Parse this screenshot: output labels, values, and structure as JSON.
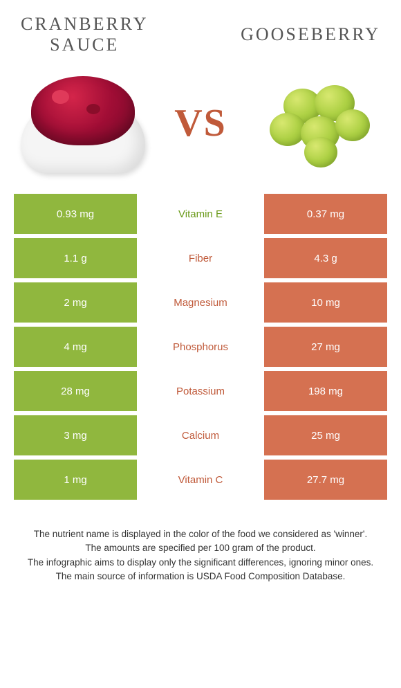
{
  "header": {
    "left_title": "CRANBERRY\nSAUCE",
    "right_title": "GOOSEBERRY",
    "vs": "VS"
  },
  "colors": {
    "left_cell": "#90b73e",
    "right_cell": "#d57151",
    "green_text": "#6a9a1a",
    "orange_text": "#c05a3a"
  },
  "rows": [
    {
      "left": "0.93 mg",
      "label": "Vitamin E",
      "right": "0.37 mg",
      "winner": "left"
    },
    {
      "left": "1.1 g",
      "label": "Fiber",
      "right": "4.3 g",
      "winner": "right"
    },
    {
      "left": "2 mg",
      "label": "Magnesium",
      "right": "10 mg",
      "winner": "right"
    },
    {
      "left": "4 mg",
      "label": "Phosphorus",
      "right": "27 mg",
      "winner": "right"
    },
    {
      "left": "28 mg",
      "label": "Potassium",
      "right": "198 mg",
      "winner": "right"
    },
    {
      "left": "3 mg",
      "label": "Calcium",
      "right": "25 mg",
      "winner": "right"
    },
    {
      "left": "1 mg",
      "label": "Vitamin C",
      "right": "27.7 mg",
      "winner": "right"
    }
  ],
  "footer": {
    "line1": "The nutrient name is displayed in the color of the food we considered as 'winner'.",
    "line2": "The amounts are specified per 100 gram of the product.",
    "line3": "The infographic aims to display only the significant differences, ignoring minor ones.",
    "line4": "The main source of information is USDA Food Composition Database."
  }
}
